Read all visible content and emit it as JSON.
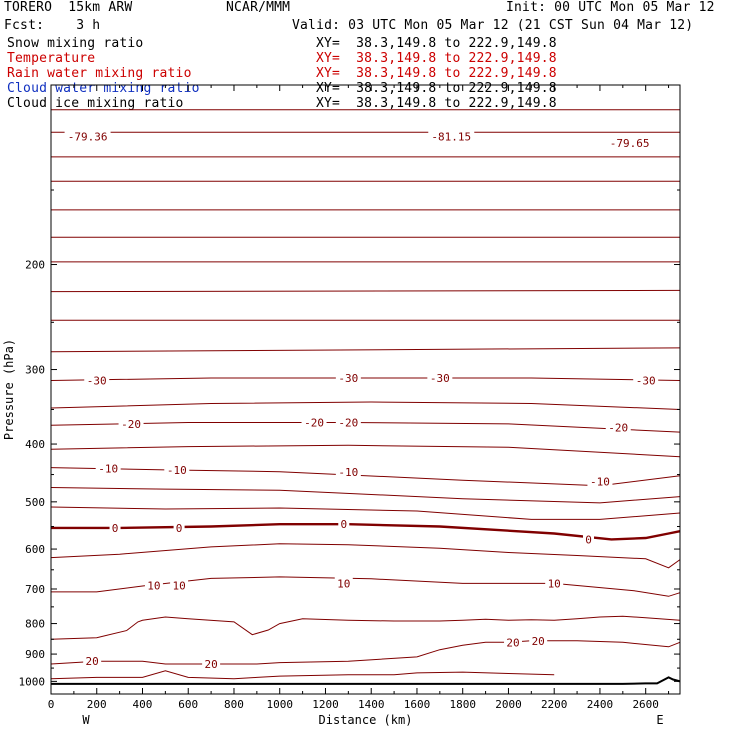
{
  "header": {
    "title_left": "TORERO  15km ARW",
    "center": "NCAR/MMM",
    "init": "Init: 00 UTC Mon 05 Mar 12",
    "fcst": "Fcst:    3 h",
    "valid": "Valid: 03 UTC Mon 05 Mar 12 (21 CST Sun 04 Mar 12)",
    "fields": [
      {
        "label": "Snow mixing ratio",
        "xy": "XY=  38.3,149.8 to 222.9,149.8",
        "color": "#000000"
      },
      {
        "label": "Temperature",
        "xy": "XY=  38.3,149.8 to 222.9,149.8",
        "color": "#cc0000"
      },
      {
        "label": "Rain water mixing ratio",
        "xy": "XY=  38.3,149.8 to 222.9,149.8",
        "color": "#cc0000"
      },
      {
        "label": "Cloud water mixing ratio",
        "xy": "XY=  38.3,149.8 to 222.9,149.8",
        "color": "#1030c0"
      },
      {
        "label": "Cloud ice mixing ratio",
        "xy": "XY=  38.3,149.8 to 222.9,149.8",
        "color": "#000000"
      }
    ]
  },
  "chart_data": {
    "type": "line",
    "xlabel": "Distance (km)",
    "ylabel": "Pressure (hPa)",
    "xlim": [
      0,
      2750
    ],
    "ylim": [
      1050,
      100
    ],
    "y_scale": "log",
    "x_ticks": [
      0,
      200,
      400,
      600,
      800,
      1000,
      1200,
      1400,
      1600,
      1800,
      2000,
      2200,
      2400,
      2600
    ],
    "y_ticks": [
      200,
      300,
      400,
      500,
      600,
      700,
      800,
      900,
      1000
    ],
    "x_end_labels": [
      "W",
      "E"
    ],
    "temperature_color": "#800000",
    "isotherms": [
      {
        "p": [
          110,
          110
        ],
        "x": [
          0,
          2750
        ]
      },
      {
        "p": [
          120,
          120
        ],
        "x": [
          0,
          2750
        ]
      },
      {
        "p": [
          132,
          132
        ],
        "x": [
          0,
          2750
        ]
      },
      {
        "p": [
          145,
          145
        ],
        "x": [
          0,
          2750
        ]
      },
      {
        "p": [
          162,
          162
        ],
        "x": [
          0,
          2750
        ]
      },
      {
        "p": [
          180,
          180
        ],
        "x": [
          0,
          2750
        ]
      },
      {
        "p": [
          198,
          198
        ],
        "x": [
          0,
          2750
        ]
      },
      {
        "p": [
          222,
          221
        ],
        "x": [
          0,
          2750
        ]
      },
      {
        "p": [
          248,
          248
        ],
        "x": [
          0,
          2750
        ]
      },
      {
        "p": [
          280,
          276
        ],
        "x": [
          0,
          2750
        ]
      },
      {
        "p": [
          313,
          310,
          310,
          310,
          313
        ],
        "x": [
          0,
          700,
          1400,
          2100,
          2750
        ]
      },
      {
        "p": [
          348,
          342,
          340,
          342,
          350
        ],
        "x": [
          0,
          700,
          1400,
          2100,
          2750
        ]
      },
      {
        "p": [
          372,
          368,
          368,
          370,
          382
        ],
        "x": [
          0,
          600,
          1300,
          2000,
          2750
        ]
      },
      {
        "p": [
          408,
          404,
          402,
          405,
          420
        ],
        "x": [
          0,
          600,
          1300,
          2000,
          2750
        ]
      },
      {
        "p": [
          438,
          442,
          445,
          460,
          470,
          452
        ],
        "x": [
          0,
          500,
          1000,
          1800,
          2400,
          2750
        ]
      },
      {
        "p": [
          473,
          476,
          478,
          494,
          502,
          490
        ],
        "x": [
          0,
          500,
          1000,
          1800,
          2400,
          2750
        ]
      },
      {
        "p": [
          510,
          514,
          512,
          518,
          535,
          535,
          522
        ],
        "x": [
          0,
          500,
          1000,
          1600,
          2100,
          2400,
          2750
        ]
      },
      {
        "p": [
          553,
          553,
          550,
          545,
          545,
          550,
          565,
          578,
          575,
          565,
          560
        ],
        "x": [
          0,
          300,
          700,
          1000,
          1300,
          1700,
          2200,
          2450,
          2600,
          2700,
          2750
        ]
      },
      {
        "p": [
          620,
          612,
          595,
          588,
          590,
          598,
          608,
          615,
          623,
          645,
          625
        ],
        "x": [
          0,
          300,
          700,
          1000,
          1300,
          1700,
          2000,
          2300,
          2600,
          2700,
          2750
        ]
      },
      {
        "p": [
          708,
          708,
          692,
          672,
          668,
          673,
          685,
          685,
          705,
          720,
          710
        ],
        "x": [
          0,
          200,
          400,
          700,
          1000,
          1400,
          1800,
          2200,
          2550,
          2700,
          2750
        ]
      },
      {
        "p": [
          850,
          845,
          822,
          795,
          790,
          780,
          785,
          795,
          835,
          820,
          800,
          785,
          790,
          792,
          792,
          790,
          787,
          790,
          788,
          790,
          785,
          780,
          778,
          782,
          790
        ],
        "x": [
          0,
          200,
          330,
          380,
          400,
          500,
          600,
          800,
          880,
          950,
          1000,
          1100,
          1300,
          1500,
          1700,
          1800,
          1900,
          2000,
          2100,
          2200,
          2300,
          2400,
          2500,
          2600,
          2750
        ]
      },
      {
        "p": [
          935,
          925,
          925,
          935,
          935,
          935,
          935,
          930,
          925,
          910,
          885,
          870,
          860,
          860,
          855,
          855,
          860,
          875,
          860
        ],
        "x": [
          0,
          200,
          400,
          500,
          700,
          800,
          900,
          1000,
          1300,
          1600,
          1700,
          1800,
          1900,
          2000,
          2100,
          2300,
          2500,
          2700,
          2750
        ]
      },
      {
        "p": [
          990,
          985,
          985,
          960,
          985,
          990,
          985,
          980,
          975,
          975,
          968,
          965,
          970,
          975
        ],
        "x": [
          0,
          200,
          400,
          500,
          600,
          800,
          900,
          1000,
          1300,
          1500,
          1600,
          1800,
          2000,
          2200
        ]
      }
    ],
    "temperature_labels": [
      {
        "text": "-30",
        "x": 200,
        "p": 313
      },
      {
        "text": "-30",
        "x": 1300,
        "p": 310
      },
      {
        "text": "-30",
        "x": 1700,
        "p": 310
      },
      {
        "text": "-30",
        "x": 2600,
        "p": 313
      },
      {
        "text": "-20",
        "x": 350,
        "p": 370
      },
      {
        "text": "-20",
        "x": 1150,
        "p": 368
      },
      {
        "text": "-20",
        "x": 1300,
        "p": 368
      },
      {
        "text": "-20",
        "x": 2480,
        "p": 375
      },
      {
        "text": "-10",
        "x": 250,
        "p": 440
      },
      {
        "text": "-10",
        "x": 550,
        "p": 442
      },
      {
        "text": "-10",
        "x": 1300,
        "p": 446
      },
      {
        "text": "-10",
        "x": 2400,
        "p": 462
      },
      {
        "text": "0",
        "x": 280,
        "p": 553
      },
      {
        "text": "0",
        "x": 560,
        "p": 553
      },
      {
        "text": "0",
        "x": 1280,
        "p": 545
      },
      {
        "text": "0",
        "x": 2350,
        "p": 578
      },
      {
        "text": "10",
        "x": 450,
        "p": 690
      },
      {
        "text": "10",
        "x": 560,
        "p": 690
      },
      {
        "text": "10",
        "x": 1280,
        "p": 685
      },
      {
        "text": "10",
        "x": 2200,
        "p": 685
      },
      {
        "text": "20",
        "x": 180,
        "p": 925
      },
      {
        "text": "20",
        "x": 700,
        "p": 935
      },
      {
        "text": "20",
        "x": 2020,
        "p": 860
      },
      {
        "text": "20",
        "x": 2130,
        "p": 855
      }
    ],
    "top_values": [
      {
        "text": "-79.36",
        "x": 160,
        "p": 122
      },
      {
        "text": "-81.15",
        "x": 1750,
        "p": 122
      },
      {
        "text": "-79.65",
        "x": 2530,
        "p": 125
      }
    ],
    "terrain": {
      "x": [
        0,
        500,
        1000,
        1500,
        2000,
        2400,
        2500,
        2600,
        2650,
        2700,
        2720,
        2750
      ],
      "p": [
        1010,
        1010,
        1010,
        1010,
        1010,
        1010,
        1010,
        1008,
        1008,
        985,
        993,
        1000
      ]
    }
  }
}
